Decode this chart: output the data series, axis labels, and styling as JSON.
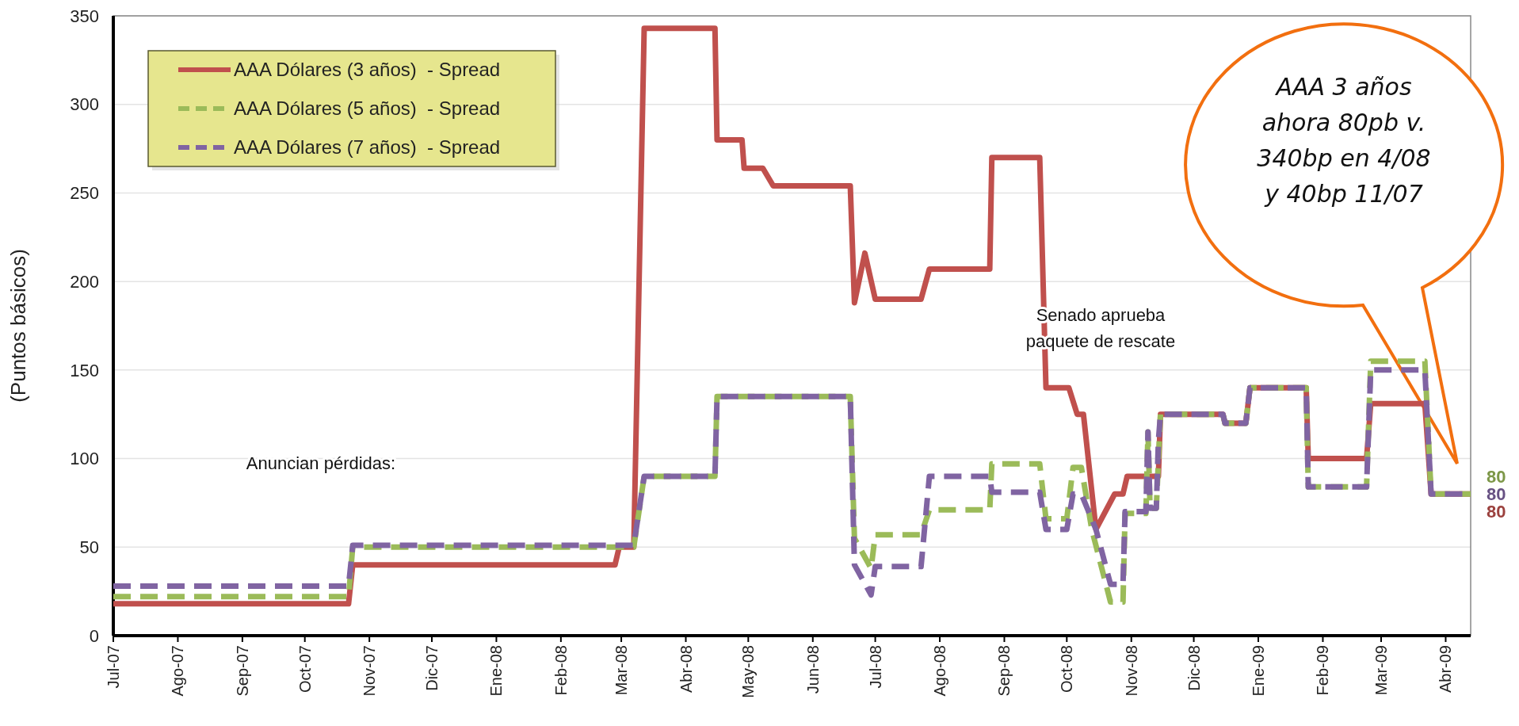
{
  "chart_data": {
    "type": "line",
    "ylabel": "(Puntos básicos)",
    "xlim": [
      "2007-07-01",
      "2009-04-13"
    ],
    "xticks": [
      {
        "value": "2007-07-01",
        "label": "Jul-07"
      },
      {
        "value": "2007-08-01",
        "label": "Ago-07"
      },
      {
        "value": "2007-09-01",
        "label": "Sep-07"
      },
      {
        "value": "2007-10-01",
        "label": "Oct-07"
      },
      {
        "value": "2007-11-01",
        "label": "Nov-07"
      },
      {
        "value": "2007-12-01",
        "label": "Dic-07"
      },
      {
        "value": "2008-01-01",
        "label": "Ene-08"
      },
      {
        "value": "2008-02-01",
        "label": "Feb-08"
      },
      {
        "value": "2008-03-01",
        "label": "Mar-08"
      },
      {
        "value": "2008-04-01",
        "label": "Abr-08"
      },
      {
        "value": "2008-05-01",
        "label": "May-08"
      },
      {
        "value": "2008-06-01",
        "label": "Jun-08"
      },
      {
        "value": "2008-07-01",
        "label": "Jul-08"
      },
      {
        "value": "2008-08-01",
        "label": "Ago-08"
      },
      {
        "value": "2008-09-01",
        "label": "Sep-08"
      },
      {
        "value": "2008-10-01",
        "label": "Oct-08"
      },
      {
        "value": "2008-11-01",
        "label": "Nov-08"
      },
      {
        "value": "2008-12-01",
        "label": "Dic-08"
      },
      {
        "value": "2009-01-01",
        "label": "Ene-09"
      },
      {
        "value": "2009-02-01",
        "label": "Feb-09"
      },
      {
        "value": "2009-03-01",
        "label": "Mar-09"
      },
      {
        "value": "2009-04-01",
        "label": "Abr-09"
      }
    ],
    "ylim": [
      0,
      350
    ],
    "yticks": [
      0,
      50,
      100,
      150,
      200,
      250,
      300,
      350
    ],
    "grid": "y",
    "legend": "top left",
    "annotations": [
      "Anuncian pérdidas:",
      "Senado aprueba\npaquete de rescate",
      "AAA 3 años\nahora 80pb v.\n340bp en 4/08\ny 40bp 11/07"
    ],
    "series": [
      {
        "name": "AAA Dólares (3 años)  - Spread",
        "color": "#c0504d",
        "line_style": "solid",
        "x": [
          "2007-07-01",
          "2007-10-22",
          "2007-10-24",
          "2008-02-27",
          "2008-02-29",
          "2008-03-07",
          "2008-03-12",
          "2008-04-15",
          "2008-04-16",
          "2008-04-28",
          "2008-04-29",
          "2008-05-08",
          "2008-05-13",
          "2008-06-19",
          "2008-06-21",
          "2008-06-26",
          "2008-07-01",
          "2008-07-23",
          "2008-07-27",
          "2008-08-25",
          "2008-08-26",
          "2008-09-18",
          "2008-09-21",
          "2008-10-02",
          "2008-10-06",
          "2008-10-09",
          "2008-10-15",
          "2008-10-24",
          "2008-10-28",
          "2008-10-30",
          "2008-11-14",
          "2008-11-15",
          "2008-12-15",
          "2008-12-16",
          "2008-12-26",
          "2008-12-28",
          "2009-01-24",
          "2009-01-25",
          "2009-02-22",
          "2009-02-24",
          "2009-03-22",
          "2009-03-25",
          "2009-04-13"
        ],
        "values": [
          18,
          18,
          40,
          40,
          50,
          50,
          343,
          343,
          280,
          280,
          264,
          264,
          254,
          254,
          188,
          216,
          190,
          190,
          207,
          207,
          270,
          270,
          140,
          140,
          125,
          125,
          60,
          80,
          80,
          90,
          90,
          125,
          125,
          120,
          120,
          140,
          140,
          100,
          100,
          131,
          131,
          80,
          80
        ],
        "value_labels": [
          null,
          null,
          null,
          null,
          null,
          null,
          null,
          null,
          null,
          null,
          null,
          null,
          null,
          null,
          null,
          null,
          null,
          null,
          null,
          null,
          null,
          null,
          null,
          null,
          null,
          null,
          null,
          null,
          null,
          null,
          null,
          null,
          null,
          null,
          null,
          null,
          null,
          null,
          null,
          null,
          null,
          null,
          "80"
        ]
      },
      {
        "name": "AAA Dólares (5 años)  - Spread",
        "color": "#9bbb59",
        "line_style": "dashed",
        "x": [
          "2007-07-01",
          "2007-10-22",
          "2007-10-24",
          "2008-03-07",
          "2008-03-12",
          "2008-04-15",
          "2008-04-16",
          "2008-06-19",
          "2008-06-21",
          "2008-06-29",
          "2008-07-01",
          "2008-07-23",
          "2008-07-27",
          "2008-08-25",
          "2008-08-26",
          "2008-09-18",
          "2008-09-21",
          "2008-10-01",
          "2008-10-04",
          "2008-10-08",
          "2008-10-13",
          "2008-10-22",
          "2008-10-28",
          "2008-10-29",
          "2008-11-08",
          "2008-11-09",
          "2008-11-10",
          "2008-11-13",
          "2008-11-15",
          "2008-12-15",
          "2008-12-16",
          "2008-12-26",
          "2008-12-28",
          "2009-01-24",
          "2009-01-25",
          "2009-02-22",
          "2009-02-24",
          "2009-03-22",
          "2009-03-25",
          "2009-04-13"
        ],
        "values": [
          22,
          22,
          50,
          50,
          90,
          90,
          135,
          135,
          55,
          38,
          57,
          57,
          71,
          71,
          97,
          97,
          66,
          66,
          95,
          95,
          60,
          19,
          19,
          69,
          69,
          115,
          72,
          72,
          125,
          125,
          120,
          120,
          140,
          140,
          84,
          84,
          155,
          155,
          80,
          80
        ],
        "value_labels": [
          null,
          null,
          null,
          null,
          null,
          null,
          null,
          null,
          null,
          null,
          null,
          null,
          null,
          null,
          null,
          null,
          null,
          null,
          null,
          null,
          null,
          null,
          null,
          null,
          null,
          null,
          null,
          null,
          null,
          null,
          null,
          null,
          null,
          null,
          null,
          null,
          null,
          null,
          null,
          "80"
        ]
      },
      {
        "name": "AAA Dólares (7 años)  - Spread",
        "color": "#8064a2",
        "line_style": "dashed",
        "x": [
          "2007-07-01",
          "2007-10-22",
          "2007-10-24",
          "2008-03-07",
          "2008-03-12",
          "2008-04-15",
          "2008-04-16",
          "2008-06-19",
          "2008-06-21",
          "2008-06-29",
          "2008-07-01",
          "2008-07-23",
          "2008-07-27",
          "2008-08-25",
          "2008-08-26",
          "2008-09-18",
          "2008-09-21",
          "2008-10-01",
          "2008-10-04",
          "2008-10-08",
          "2008-10-15",
          "2008-10-22",
          "2008-10-28",
          "2008-10-29",
          "2008-11-08",
          "2008-11-09",
          "2008-11-10",
          "2008-11-13",
          "2008-11-14",
          "2008-11-15",
          "2008-12-15",
          "2008-12-16",
          "2008-12-26",
          "2008-12-28",
          "2009-01-24",
          "2009-01-25",
          "2009-02-22",
          "2009-02-24",
          "2009-03-22",
          "2009-03-25",
          "2009-04-13"
        ],
        "values": [
          28,
          28,
          51,
          51,
          90,
          90,
          135,
          135,
          40,
          23,
          39,
          39,
          90,
          90,
          81,
          81,
          60,
          60,
          80,
          80,
          60,
          29,
          29,
          70,
          70,
          115,
          72,
          72,
          110,
          125,
          125,
          120,
          120,
          140,
          140,
          84,
          84,
          150,
          150,
          80,
          80
        ],
        "value_labels": [
          null,
          null,
          null,
          null,
          null,
          null,
          null,
          null,
          null,
          null,
          null,
          null,
          null,
          null,
          null,
          null,
          null,
          null,
          null,
          null,
          null,
          null,
          null,
          null,
          null,
          null,
          null,
          null,
          null,
          null,
          null,
          null,
          null,
          null,
          null,
          null,
          null,
          null,
          null,
          null,
          "80"
        ]
      }
    ]
  }
}
